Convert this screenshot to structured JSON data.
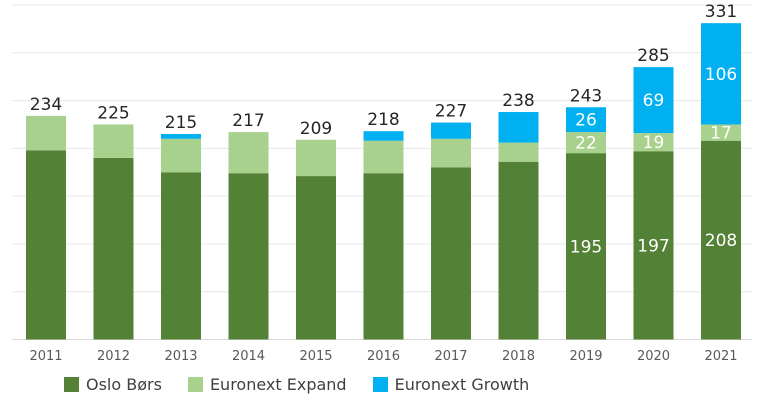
{
  "chart_data": {
    "type": "bar",
    "stacked": true,
    "categories": [
      "2011",
      "2012",
      "2013",
      "2014",
      "2015",
      "2016",
      "2017",
      "2018",
      "2019",
      "2020",
      "2021"
    ],
    "series": [
      {
        "name": "Oslo Børs",
        "color": "#538135",
        "values": [
          198,
          190,
          175,
          174,
          171,
          174,
          180,
          186,
          195,
          197,
          208
        ],
        "labels": [
          "",
          "",
          "",
          "",
          "",
          "",
          "",
          "",
          "195",
          "197",
          "208"
        ]
      },
      {
        "name": "Euronext Expand",
        "color": "#a9d18e",
        "values": [
          36,
          35,
          35,
          43,
          38,
          34,
          30,
          20,
          22,
          19,
          17
        ],
        "labels": [
          "",
          "",
          "",
          "",
          "",
          "",
          "",
          "",
          "22",
          "19",
          "17"
        ]
      },
      {
        "name": "Euronext Growth",
        "color": "#00b0f0",
        "values": [
          0,
          0,
          5,
          0,
          0,
          10,
          17,
          32,
          26,
          69,
          106
        ],
        "labels": [
          "",
          "",
          "",
          "",
          "",
          "",
          "",
          "",
          "26",
          "69",
          "106"
        ]
      }
    ],
    "totals": [
      "234",
      "225",
      "215",
      "217",
      "209",
      "218",
      "227",
      "238",
      "243",
      "285",
      "331"
    ],
    "ylim": [
      0,
      350
    ],
    "grid": true,
    "legend_position": "bottom-left",
    "title": "",
    "xlabel": "",
    "ylabel": ""
  }
}
